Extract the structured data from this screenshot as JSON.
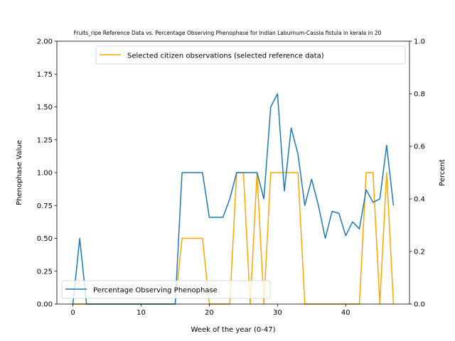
{
  "chart_data": {
    "type": "line",
    "title": "Fruits_ripe Reference Data vs. Percentage Observing Phenophase for Indian Laburnum-Cassia fistula in kerala in 20",
    "xlabel": "Week of the year (0-47)",
    "ylabel_left": "Phenophase Value",
    "ylabel_right": "Percent",
    "xlim": [
      -2.35,
      49.35
    ],
    "ylim_left": [
      0,
      2.0
    ],
    "ylim_right": [
      0,
      1.0
    ],
    "x_ticks": [
      0,
      10,
      20,
      30,
      40
    ],
    "y_left_ticks": [
      0.0,
      0.25,
      0.5,
      0.75,
      1.0,
      1.25,
      1.5,
      1.75,
      2.0
    ],
    "y_left_tick_labels": [
      "0.00",
      "0.25",
      "0.50",
      "0.75",
      "1.00",
      "1.25",
      "1.50",
      "1.75",
      "2.00"
    ],
    "y_right_ticks": [
      0.0,
      0.2,
      0.4,
      0.6,
      0.8,
      1.0
    ],
    "y_right_tick_labels": [
      "0.0",
      "0.2",
      "0.4",
      "0.6",
      "0.8",
      "1.0"
    ],
    "grid": false,
    "series": [
      {
        "name": "Selected citizen observations (selected reference data)",
        "axis": "left",
        "color": "#ffa500",
        "legend_position": "upper-right",
        "x": [
          0,
          1,
          2,
          3,
          4,
          5,
          6,
          7,
          8,
          9,
          10,
          11,
          12,
          13,
          14,
          15,
          16,
          17,
          18,
          19,
          20,
          21,
          22,
          23,
          24,
          25,
          26,
          27,
          28,
          29,
          30,
          31,
          32,
          33,
          34,
          35,
          36,
          37,
          38,
          39,
          40,
          41,
          42,
          43,
          44,
          45,
          46,
          47
        ],
        "y": [
          0,
          0,
          0,
          0,
          0,
          0,
          0,
          0,
          0,
          0,
          0,
          0,
          0,
          0,
          0,
          0,
          0.5,
          0.5,
          0.5,
          0.5,
          0,
          0,
          0,
          0,
          1,
          1,
          0,
          1,
          0,
          1,
          1,
          1,
          1,
          1,
          0,
          0,
          0,
          0,
          0,
          0,
          0,
          0,
          0,
          1,
          1,
          0,
          1,
          0
        ]
      },
      {
        "name": "Percentage Observing Phenophase",
        "axis": "right",
        "color": "#1f77b4",
        "legend_position": "lower-left",
        "x": [
          0,
          1,
          2,
          3,
          4,
          5,
          6,
          7,
          8,
          9,
          10,
          11,
          12,
          13,
          14,
          15,
          16,
          17,
          18,
          19,
          20,
          21,
          22,
          23,
          24,
          25,
          26,
          27,
          28,
          29,
          30,
          31,
          32,
          33,
          34,
          35,
          36,
          37,
          38,
          39,
          40,
          41,
          42,
          43,
          44,
          45,
          46,
          47
        ],
        "y": [
          0,
          0.25,
          0,
          0,
          0,
          0,
          0,
          0,
          0,
          0,
          0,
          0,
          0,
          0,
          0,
          0,
          0.5,
          0.5,
          0.5,
          0.5,
          0.33,
          0.33,
          0.33,
          0.4,
          0.5,
          0.5,
          0.5,
          0.5,
          0.4,
          0.75,
          0.8,
          0.43,
          0.67,
          0.57,
          0.375,
          0.475,
          0.375,
          0.25,
          0.353,
          0.345,
          0.26,
          0.313,
          0.286,
          0.435,
          0.387,
          0.4,
          0.604,
          0.375
        ]
      }
    ]
  }
}
